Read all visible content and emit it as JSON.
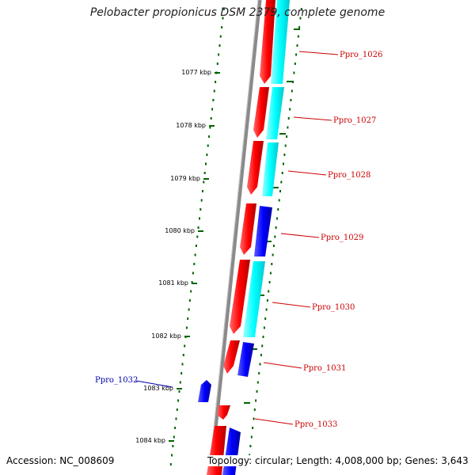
{
  "title": "Pelobacter propionicus DSM 2379, complete genome",
  "footer": {
    "accession": "Accession: NC_008609",
    "summary": "Topology: circular; Length: 4,008,000 bp; Genes: 3,643"
  },
  "scale_labels": [
    "1077 kbp",
    "1078 kbp",
    "1079 kbp",
    "1080 kbp",
    "1081 kbp",
    "1082 kbp",
    "1083 kbp",
    "1084 kbp"
  ],
  "gene_labels": [
    {
      "text": "Ppro_1026",
      "strand": "forward"
    },
    {
      "text": "Ppro_1027",
      "strand": "forward"
    },
    {
      "text": "Ppro_1028",
      "strand": "forward"
    },
    {
      "text": "Ppro_1029",
      "strand": "forward"
    },
    {
      "text": "Ppro_1030",
      "strand": "forward"
    },
    {
      "text": "Ppro_1031",
      "strand": "forward"
    },
    {
      "text": "Ppro_1032",
      "strand": "reverse"
    },
    {
      "text": "Ppro_1033",
      "strand": "forward"
    }
  ],
  "colors": {
    "backbone": "#8a8a8a",
    "forward_cds": "#ff0000",
    "reverse_cds": "#0000ff",
    "cyan_track": "#00ffff",
    "tick_green": "#006400",
    "forward_label": "#cc0000",
    "reverse_label": "#0000aa"
  }
}
